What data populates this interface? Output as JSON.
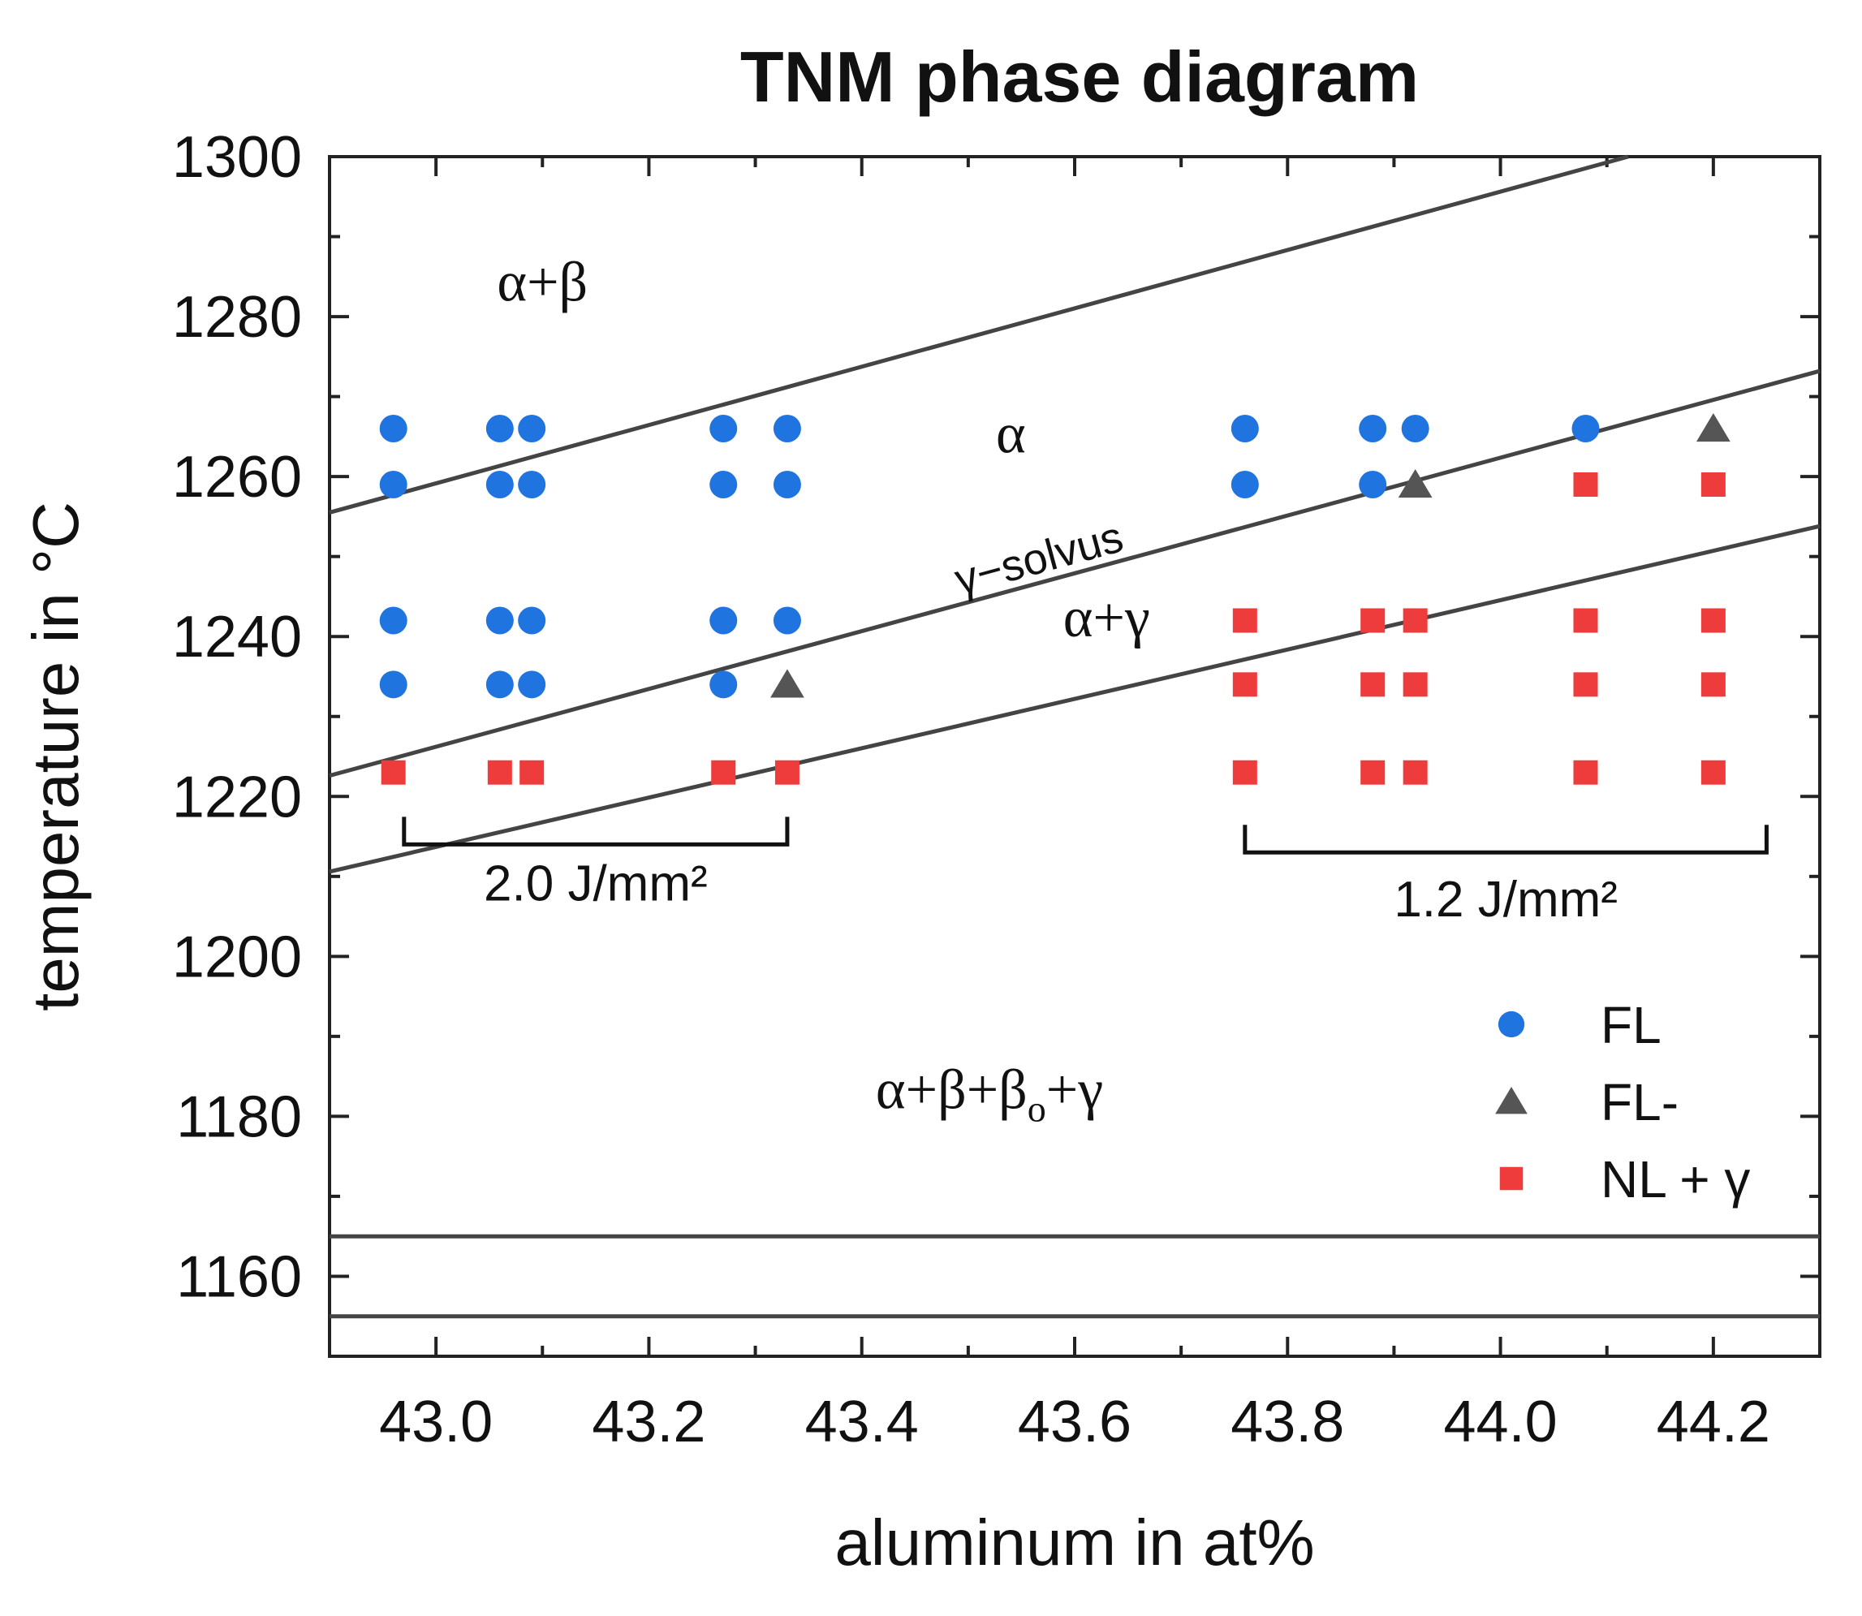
{
  "chart_data": {
    "type": "scatter",
    "title": "TNM phase diagram",
    "xlabel": "aluminum in at%",
    "ylabel": "temperature in °C",
    "xlim": [
      42.9,
      44.3
    ],
    "ylim": [
      1150,
      1300
    ],
    "xticks": [
      43.0,
      43.2,
      43.4,
      43.6,
      43.8,
      44.0,
      44.2
    ],
    "xtick_labels": [
      "43.0",
      "43.2",
      "43.4",
      "43.6",
      "43.8",
      "44.0",
      "44.2"
    ],
    "yticks": [
      1160,
      1180,
      1200,
      1220,
      1240,
      1260,
      1280,
      1300
    ],
    "ytick_labels": [
      "1160",
      "1180",
      "1200",
      "1220",
      "1240",
      "1260",
      "1280",
      "1300"
    ],
    "colors": {
      "FL": "#1f74e0",
      "FL-": "#555555",
      "NL": "#ee3b3b",
      "line": "#444444"
    },
    "series": [
      {
        "name": "FL",
        "marker": "circle",
        "points": [
          [
            42.96,
            1266
          ],
          [
            42.96,
            1259
          ],
          [
            42.96,
            1242
          ],
          [
            42.96,
            1234
          ],
          [
            43.06,
            1266
          ],
          [
            43.06,
            1259
          ],
          [
            43.06,
            1242
          ],
          [
            43.06,
            1234
          ],
          [
            43.09,
            1266
          ],
          [
            43.09,
            1259
          ],
          [
            43.09,
            1242
          ],
          [
            43.09,
            1234
          ],
          [
            43.27,
            1266
          ],
          [
            43.27,
            1259
          ],
          [
            43.27,
            1242
          ],
          [
            43.27,
            1234
          ],
          [
            43.33,
            1266
          ],
          [
            43.33,
            1259
          ],
          [
            43.33,
            1242
          ],
          [
            43.76,
            1266
          ],
          [
            43.76,
            1259
          ],
          [
            43.88,
            1266
          ],
          [
            43.88,
            1259
          ],
          [
            43.92,
            1266
          ],
          [
            44.08,
            1266
          ]
        ]
      },
      {
        "name": "FL-",
        "marker": "triangle",
        "points": [
          [
            43.33,
            1234
          ],
          [
            43.92,
            1259
          ],
          [
            44.2,
            1266
          ]
        ]
      },
      {
        "name": "NL + γ",
        "marker": "square",
        "points": [
          [
            42.96,
            1223
          ],
          [
            43.06,
            1223
          ],
          [
            43.09,
            1223
          ],
          [
            43.27,
            1223
          ],
          [
            43.33,
            1223
          ],
          [
            43.76,
            1242
          ],
          [
            43.76,
            1234
          ],
          [
            43.76,
            1223
          ],
          [
            43.88,
            1242
          ],
          [
            43.88,
            1234
          ],
          [
            43.88,
            1223
          ],
          [
            43.92,
            1242
          ],
          [
            43.92,
            1234
          ],
          [
            43.92,
            1223
          ],
          [
            44.08,
            1259
          ],
          [
            44.08,
            1242
          ],
          [
            44.08,
            1234
          ],
          [
            44.08,
            1223
          ],
          [
            44.2,
            1259
          ],
          [
            44.2,
            1242
          ],
          [
            44.2,
            1234
          ],
          [
            44.2,
            1223
          ]
        ]
      }
    ],
    "phase_lines": [
      {
        "name": "alpha-beta boundary",
        "from": [
          42.9,
          1255.5
        ],
        "to": [
          44.12,
          1300
        ]
      },
      {
        "name": "gamma-solvus",
        "from": [
          42.9,
          1222.6
        ],
        "to": [
          44.3,
          1273.2
        ]
      },
      {
        "name": "alpha-gamma lower boundary",
        "from": [
          42.9,
          1210.6
        ],
        "to": [
          44.3,
          1253.8
        ]
      },
      {
        "name": "eutectoid upper",
        "from": [
          42.9,
          1165
        ],
        "to": [
          44.3,
          1165
        ]
      },
      {
        "name": "eutectoid lower",
        "from": [
          42.9,
          1155
        ],
        "to": [
          44.3,
          1155
        ]
      }
    ],
    "region_labels": [
      {
        "name": "alpha-beta",
        "text": "α+β",
        "at": [
          43.1,
          1282
        ]
      },
      {
        "name": "alpha",
        "text": "α",
        "at": [
          43.54,
          1263
        ]
      },
      {
        "name": "gamma-solvus",
        "text": "γ−solvus",
        "at": [
          43.57,
          1248
        ]
      },
      {
        "name": "alpha-gamma",
        "text": "α+γ",
        "at": [
          43.63,
          1240
        ]
      },
      {
        "name": "alpha-beta-beta0-gamma",
        "text": "α+β+β",
        "subscript": "o",
        "suffix": "+γ",
        "at": [
          43.52,
          1181
        ]
      }
    ],
    "brackets": [
      {
        "name": "energy-2.0",
        "label": "2.0 J/mm²",
        "x_from": 42.97,
        "x_to": 43.33,
        "y": 1214,
        "label_y": 1207
      },
      {
        "name": "energy-1.2",
        "label": "1.2 J/mm²",
        "x_from": 43.76,
        "x_to": 44.25,
        "y": 1213,
        "label_y": 1205
      }
    ],
    "legend": {
      "position": "bottom-right",
      "entries": [
        {
          "label": "FL",
          "marker": "circle"
        },
        {
          "label": "FL-",
          "marker": "triangle"
        },
        {
          "label": "NL + γ",
          "marker": "square"
        }
      ]
    },
    "grid": false
  }
}
